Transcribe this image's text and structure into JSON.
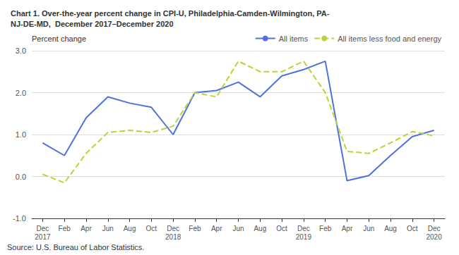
{
  "chart_data": {
    "type": "line",
    "title": "Chart 1. Over-the-year percent change in CPI-U, Philadelphia-Camden-Wilmington, PA-\nNJ-DE-MD,  December 2017–December 2020",
    "ylabel": "Percent change",
    "annotations": [
      "Source: U.S. Bureau of Labor Statistics."
    ],
    "categories": [
      "Dec\n2017",
      "Feb",
      "Apr",
      "Jun",
      "Aug",
      "Oct",
      "Dec\n2018",
      "Feb",
      "Apr",
      "Jun",
      "Aug",
      "Oct",
      "Dec\n2019",
      "Feb",
      "Apr",
      "Jun",
      "Aug",
      "Oct",
      "Dec\n2020"
    ],
    "series": [
      {
        "name": "All items",
        "line_style": "solid",
        "values": [
          0.8,
          0.5,
          1.4,
          1.9,
          1.75,
          1.65,
          1.0,
          2.0,
          2.05,
          2.25,
          1.9,
          2.4,
          2.55,
          2.75,
          -0.1,
          0.02,
          0.5,
          0.95,
          1.1
        ]
      },
      {
        "name": "All items less food and energy",
        "line_style": "dashed",
        "values": [
          0.05,
          -0.15,
          0.55,
          1.05,
          1.1,
          1.05,
          1.2,
          2.0,
          1.9,
          2.75,
          2.5,
          2.5,
          2.75,
          2.0,
          0.6,
          0.55,
          0.8,
          1.07,
          0.97
        ]
      }
    ],
    "ylim": [
      -1.0,
      3.0
    ],
    "yticks": [
      {
        "value": -1.0,
        "label": "-1.0"
      },
      {
        "value": 0.0,
        "label": "0.0"
      },
      {
        "value": 1.0,
        "label": "1.0"
      },
      {
        "value": 2.0,
        "label": "2.0"
      },
      {
        "value": 3.0,
        "label": "3.0"
      }
    ],
    "grid": true,
    "legend": "upper right"
  }
}
